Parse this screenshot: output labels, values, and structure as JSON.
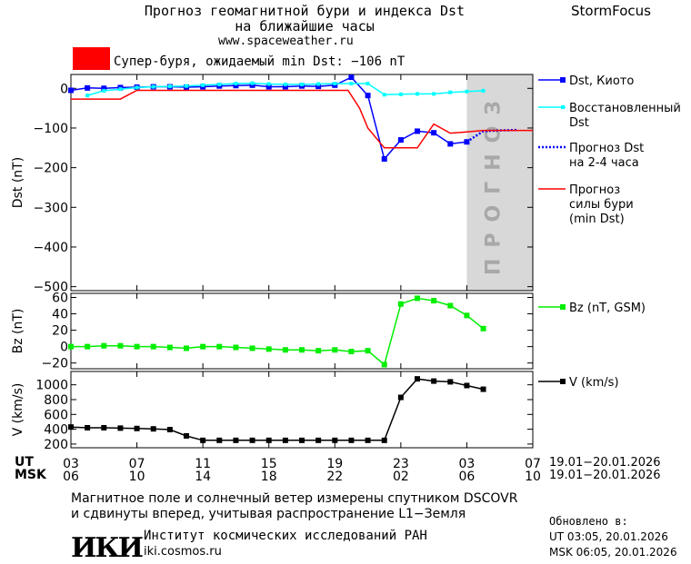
{
  "header": {
    "title_line1": "Прогноз геомагнитной бури и индекса Dst",
    "title_line2": "на ближайшие часы",
    "website": "www.spaceweather.ru",
    "brand": "StormFocus"
  },
  "alert": {
    "color": "#ff0000",
    "text": "Супер-буря, ожидаемый min Dst: −106 nT"
  },
  "forecast_zone_label": "прогноз",
  "time_axis": {
    "ut_label": "UT",
    "msk_label": "MSK",
    "ut_ticks": [
      "03",
      "07",
      "11",
      "15",
      "19",
      "23",
      "03",
      "07"
    ],
    "msk_ticks": [
      "06",
      "10",
      "14",
      "18",
      "22",
      "02",
      "06",
      "10"
    ],
    "ut_range": "19.01−20.01.2026",
    "msk_range": "19.01−20.01.2026"
  },
  "footer": {
    "note_line1": "Магнитное поле и солнечный ветер измерены спутником DSCOVR",
    "note_line2": "и сдвинуты вперед, учитывая распространение L1−Земля",
    "updated_label": "Обновлено в:",
    "updated_ut": "UT  03:05, 20.01.2026",
    "updated_msk": "MSK 06:05, 20.01.2026",
    "logo_text": "ИКИ",
    "institute": "Институт космических исследований РАН",
    "institute_site": "iki.cosmos.ru"
  },
  "chart_data": [
    {
      "type": "line",
      "ylabel": "Dst (nT)",
      "ylim": [
        -510,
        35
      ],
      "yticks": [
        0,
        -100,
        -200,
        -300,
        -400,
        -500
      ],
      "ytick_labels": [
        "0",
        "−100",
        "−200",
        "−300",
        "−400",
        "−500"
      ],
      "x_unit": "hours (UT) since 19.01.2026 03:00",
      "xlim": [
        0,
        28
      ],
      "forecast_region": [
        24,
        28
      ],
      "series": [
        {
          "name": "Dst, Киото",
          "color": "#0000ff",
          "marker": "square",
          "x": [
            0,
            1,
            2,
            3,
            4,
            5,
            6,
            7,
            8,
            9,
            10,
            11,
            12,
            13,
            14,
            15,
            16,
            17,
            18,
            19,
            20,
            21,
            22,
            23,
            24
          ],
          "y": [
            -5,
            1,
            0,
            2,
            3,
            4,
            4,
            3,
            4,
            6,
            7,
            8,
            4,
            4,
            6,
            5,
            8,
            28,
            -18,
            -178,
            -130,
            -108,
            -112,
            -140,
            -135
          ]
        },
        {
          "name": "Восстановленный Dst",
          "color": "#00ffff",
          "marker": "square",
          "x": [
            1,
            2,
            3,
            4,
            5,
            6,
            7,
            8,
            9,
            10,
            11,
            12,
            13,
            14,
            15,
            16,
            17,
            18,
            19,
            20,
            21,
            22,
            23,
            24,
            25
          ],
          "y": [
            -18,
            -6,
            -2,
            2,
            4,
            5,
            6,
            8,
            10,
            12,
            13,
            11,
            10,
            10,
            11,
            12,
            12,
            12,
            -16,
            -15,
            -14,
            -14,
            -10,
            -8,
            -6
          ]
        },
        {
          "name": "Прогноз Dst на 2-4 часа",
          "color": "#0000ff",
          "dashed": true,
          "x": [
            24,
            25,
            26,
            27
          ],
          "y": [
            -135,
            -108,
            -106,
            -105
          ]
        },
        {
          "name": "Прогноз силы бури (min Dst)",
          "color": "#ff0000",
          "x": [
            0,
            3,
            4,
            16.8,
            17.5,
            18,
            19,
            21,
            22,
            23,
            24,
            25,
            28
          ],
          "y": [
            -27,
            -27,
            -5,
            -5,
            -50,
            -100,
            -150,
            -150,
            -90,
            -113,
            -110,
            -106,
            -106
          ]
        }
      ]
    },
    {
      "type": "line",
      "ylabel": "Bz (nT)",
      "ylim": [
        -27,
        65
      ],
      "yticks": [
        60,
        40,
        20,
        0,
        -20
      ],
      "ytick_labels": [
        "60",
        "40",
        "20",
        "0",
        "−20"
      ],
      "xlim": [
        0,
        28
      ],
      "series": [
        {
          "name": "Bz (nT, GSM)",
          "color": "#00ee00",
          "marker": "square",
          "x": [
            0,
            1,
            2,
            3,
            4,
            5,
            6,
            7,
            8,
            9,
            10,
            11,
            12,
            13,
            14,
            15,
            16,
            17,
            18,
            19,
            20,
            21,
            22,
            23,
            24,
            25
          ],
          "y": [
            0,
            0,
            1,
            1,
            0,
            0,
            -1,
            -2,
            0,
            0,
            -1,
            -2,
            -3,
            -4,
            -4,
            -5,
            -4,
            -6,
            -5,
            -22,
            52,
            59,
            56,
            50,
            38,
            22
          ]
        }
      ]
    },
    {
      "type": "line",
      "ylabel": "V (km/s)",
      "ylim": [
        150,
        1180
      ],
      "yticks": [
        1000,
        800,
        600,
        400,
        200
      ],
      "ytick_labels": [
        "1000",
        "800",
        "600",
        "400",
        "200"
      ],
      "xlim": [
        0,
        28
      ],
      "series": [
        {
          "name": "V (km/s)",
          "color": "#000000",
          "marker": "square",
          "x": [
            0,
            1,
            2,
            3,
            4,
            5,
            6,
            7,
            8,
            9,
            10,
            11,
            12,
            13,
            14,
            15,
            16,
            17,
            18,
            19,
            20,
            21,
            22,
            23,
            24,
            25
          ],
          "y": [
            430,
            420,
            420,
            415,
            410,
            405,
            395,
            310,
            250,
            250,
            250,
            250,
            250,
            250,
            250,
            250,
            250,
            250,
            250,
            250,
            830,
            1080,
            1050,
            1040,
            990,
            940
          ]
        }
      ]
    }
  ]
}
